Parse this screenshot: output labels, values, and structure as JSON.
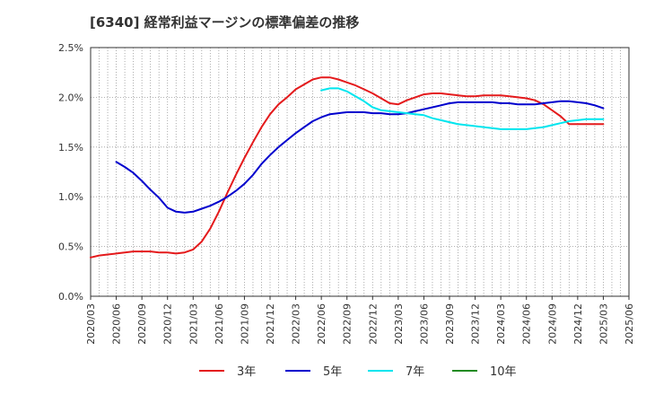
{
  "chart_data": {
    "type": "line",
    "title": "[6340]  経常利益マージンの標準偏差の推移",
    "xlabel": "",
    "ylabel": "",
    "ylim": [
      0,
      0.025
    ],
    "yticks": [
      0,
      0.005,
      0.01,
      0.015,
      0.02,
      0.025
    ],
    "ytick_labels": [
      "0.0%",
      "0.5%",
      "1.0%",
      "1.5%",
      "2.0%",
      "2.5%"
    ],
    "x_range": [
      "2020/03",
      "2025/06"
    ],
    "xtick_labels": [
      "2020/03",
      "2020/06",
      "2020/09",
      "2020/12",
      "2021/03",
      "2021/06",
      "2021/09",
      "2021/12",
      "2022/03",
      "2022/06",
      "2022/09",
      "2022/12",
      "2023/03",
      "2023/06",
      "2023/09",
      "2023/12",
      "2024/03",
      "2024/06",
      "2024/09",
      "2024/12",
      "2025/03",
      "2025/06"
    ],
    "grid": true,
    "legend_position": "bottom",
    "series": [
      {
        "name": "3年",
        "color": "#e41a1c",
        "x": [
          "2020/03",
          "2020/04",
          "2020/05",
          "2020/06",
          "2020/07",
          "2020/08",
          "2020/09",
          "2020/10",
          "2020/11",
          "2020/12",
          "2021/01",
          "2021/02",
          "2021/03",
          "2021/04",
          "2021/05",
          "2021/06",
          "2021/07",
          "2021/08",
          "2021/09",
          "2021/10",
          "2021/11",
          "2021/12",
          "2022/01",
          "2022/02",
          "2022/03",
          "2022/04",
          "2022/05",
          "2022/06",
          "2022/07",
          "2022/08",
          "2022/09",
          "2022/10",
          "2022/11",
          "2022/12",
          "2023/01",
          "2023/02",
          "2023/03",
          "2023/04",
          "2023/05",
          "2023/06",
          "2023/07",
          "2023/08",
          "2023/09",
          "2023/10",
          "2023/11",
          "2023/12",
          "2024/01",
          "2024/02",
          "2024/03",
          "2024/04",
          "2024/05",
          "2024/06",
          "2024/07",
          "2024/08",
          "2024/09",
          "2024/10",
          "2024/11",
          "2024/12",
          "2025/01",
          "2025/02",
          "2025/03"
        ],
        "values": [
          0.0039,
          0.0041,
          0.0042,
          0.0043,
          0.0044,
          0.0045,
          0.0045,
          0.0045,
          0.0044,
          0.0044,
          0.0043,
          0.0044,
          0.0047,
          0.0055,
          0.0068,
          0.0085,
          0.0104,
          0.0122,
          0.0139,
          0.0155,
          0.017,
          0.0183,
          0.0193,
          0.02,
          0.0208,
          0.0213,
          0.0218,
          0.022,
          0.022,
          0.0218,
          0.0215,
          0.0212,
          0.0208,
          0.0204,
          0.0199,
          0.0194,
          0.0193,
          0.0197,
          0.02,
          0.0203,
          0.0204,
          0.0204,
          0.0203,
          0.0202,
          0.0201,
          0.0201,
          0.0202,
          0.0202,
          0.0202,
          0.0201,
          0.02,
          0.0199,
          0.0197,
          0.0193,
          0.0187,
          0.0181,
          0.0173,
          0.0173,
          0.0173,
          0.0173,
          0.0173
        ]
      },
      {
        "name": "5年",
        "color": "#0000cd",
        "x": [
          "2020/06",
          "2020/07",
          "2020/08",
          "2020/09",
          "2020/10",
          "2020/11",
          "2020/12",
          "2021/01",
          "2021/02",
          "2021/03",
          "2021/04",
          "2021/05",
          "2021/06",
          "2021/07",
          "2021/08",
          "2021/09",
          "2021/10",
          "2021/11",
          "2021/12",
          "2022/01",
          "2022/02",
          "2022/03",
          "2022/04",
          "2022/05",
          "2022/06",
          "2022/07",
          "2022/08",
          "2022/09",
          "2022/10",
          "2022/11",
          "2022/12",
          "2023/01",
          "2023/02",
          "2023/03",
          "2023/04",
          "2023/05",
          "2023/06",
          "2023/07",
          "2023/08",
          "2023/09",
          "2023/10",
          "2023/11",
          "2023/12",
          "2024/01",
          "2024/02",
          "2024/03",
          "2024/04",
          "2024/05",
          "2024/06",
          "2024/07",
          "2024/08",
          "2024/09",
          "2024/10",
          "2024/11",
          "2024/12",
          "2025/01",
          "2025/02",
          "2025/03"
        ],
        "values": [
          0.0135,
          0.013,
          0.0124,
          0.0116,
          0.0107,
          0.0099,
          0.0089,
          0.0085,
          0.0084,
          0.0085,
          0.0088,
          0.0091,
          0.0095,
          0.01,
          0.0106,
          0.0113,
          0.0122,
          0.0133,
          0.0142,
          0.015,
          0.0157,
          0.0164,
          0.017,
          0.0176,
          0.018,
          0.0183,
          0.0184,
          0.0185,
          0.0185,
          0.0185,
          0.0184,
          0.0184,
          0.0183,
          0.0183,
          0.0184,
          0.0186,
          0.0188,
          0.019,
          0.0192,
          0.0194,
          0.0195,
          0.0195,
          0.0195,
          0.0195,
          0.0195,
          0.0194,
          0.0194,
          0.0193,
          0.0193,
          0.0193,
          0.0194,
          0.0195,
          0.0196,
          0.0196,
          0.0195,
          0.0194,
          0.0192,
          0.0189
        ]
      },
      {
        "name": "7年",
        "color": "#00e5ee",
        "x": [
          "2022/06",
          "2022/07",
          "2022/08",
          "2022/09",
          "2022/10",
          "2022/11",
          "2022/12",
          "2023/01",
          "2023/02",
          "2023/03",
          "2023/04",
          "2023/05",
          "2023/06",
          "2023/07",
          "2023/08",
          "2023/09",
          "2023/10",
          "2023/11",
          "2023/12",
          "2024/01",
          "2024/02",
          "2024/03",
          "2024/04",
          "2024/05",
          "2024/06",
          "2024/07",
          "2024/08",
          "2024/09",
          "2024/10",
          "2024/11",
          "2024/12",
          "2025/01",
          "2025/02",
          "2025/03"
        ],
        "values": [
          0.0207,
          0.0209,
          0.0209,
          0.0206,
          0.0201,
          0.0196,
          0.019,
          0.0187,
          0.0186,
          0.0185,
          0.0184,
          0.0183,
          0.0182,
          0.0179,
          0.0177,
          0.0175,
          0.0173,
          0.0172,
          0.0171,
          0.017,
          0.0169,
          0.0168,
          0.0168,
          0.0168,
          0.0168,
          0.0169,
          0.017,
          0.0172,
          0.0174,
          0.0176,
          0.0177,
          0.0178,
          0.0178,
          0.0178
        ]
      },
      {
        "name": "10年",
        "color": "#228b22",
        "x": [],
        "values": []
      }
    ]
  }
}
